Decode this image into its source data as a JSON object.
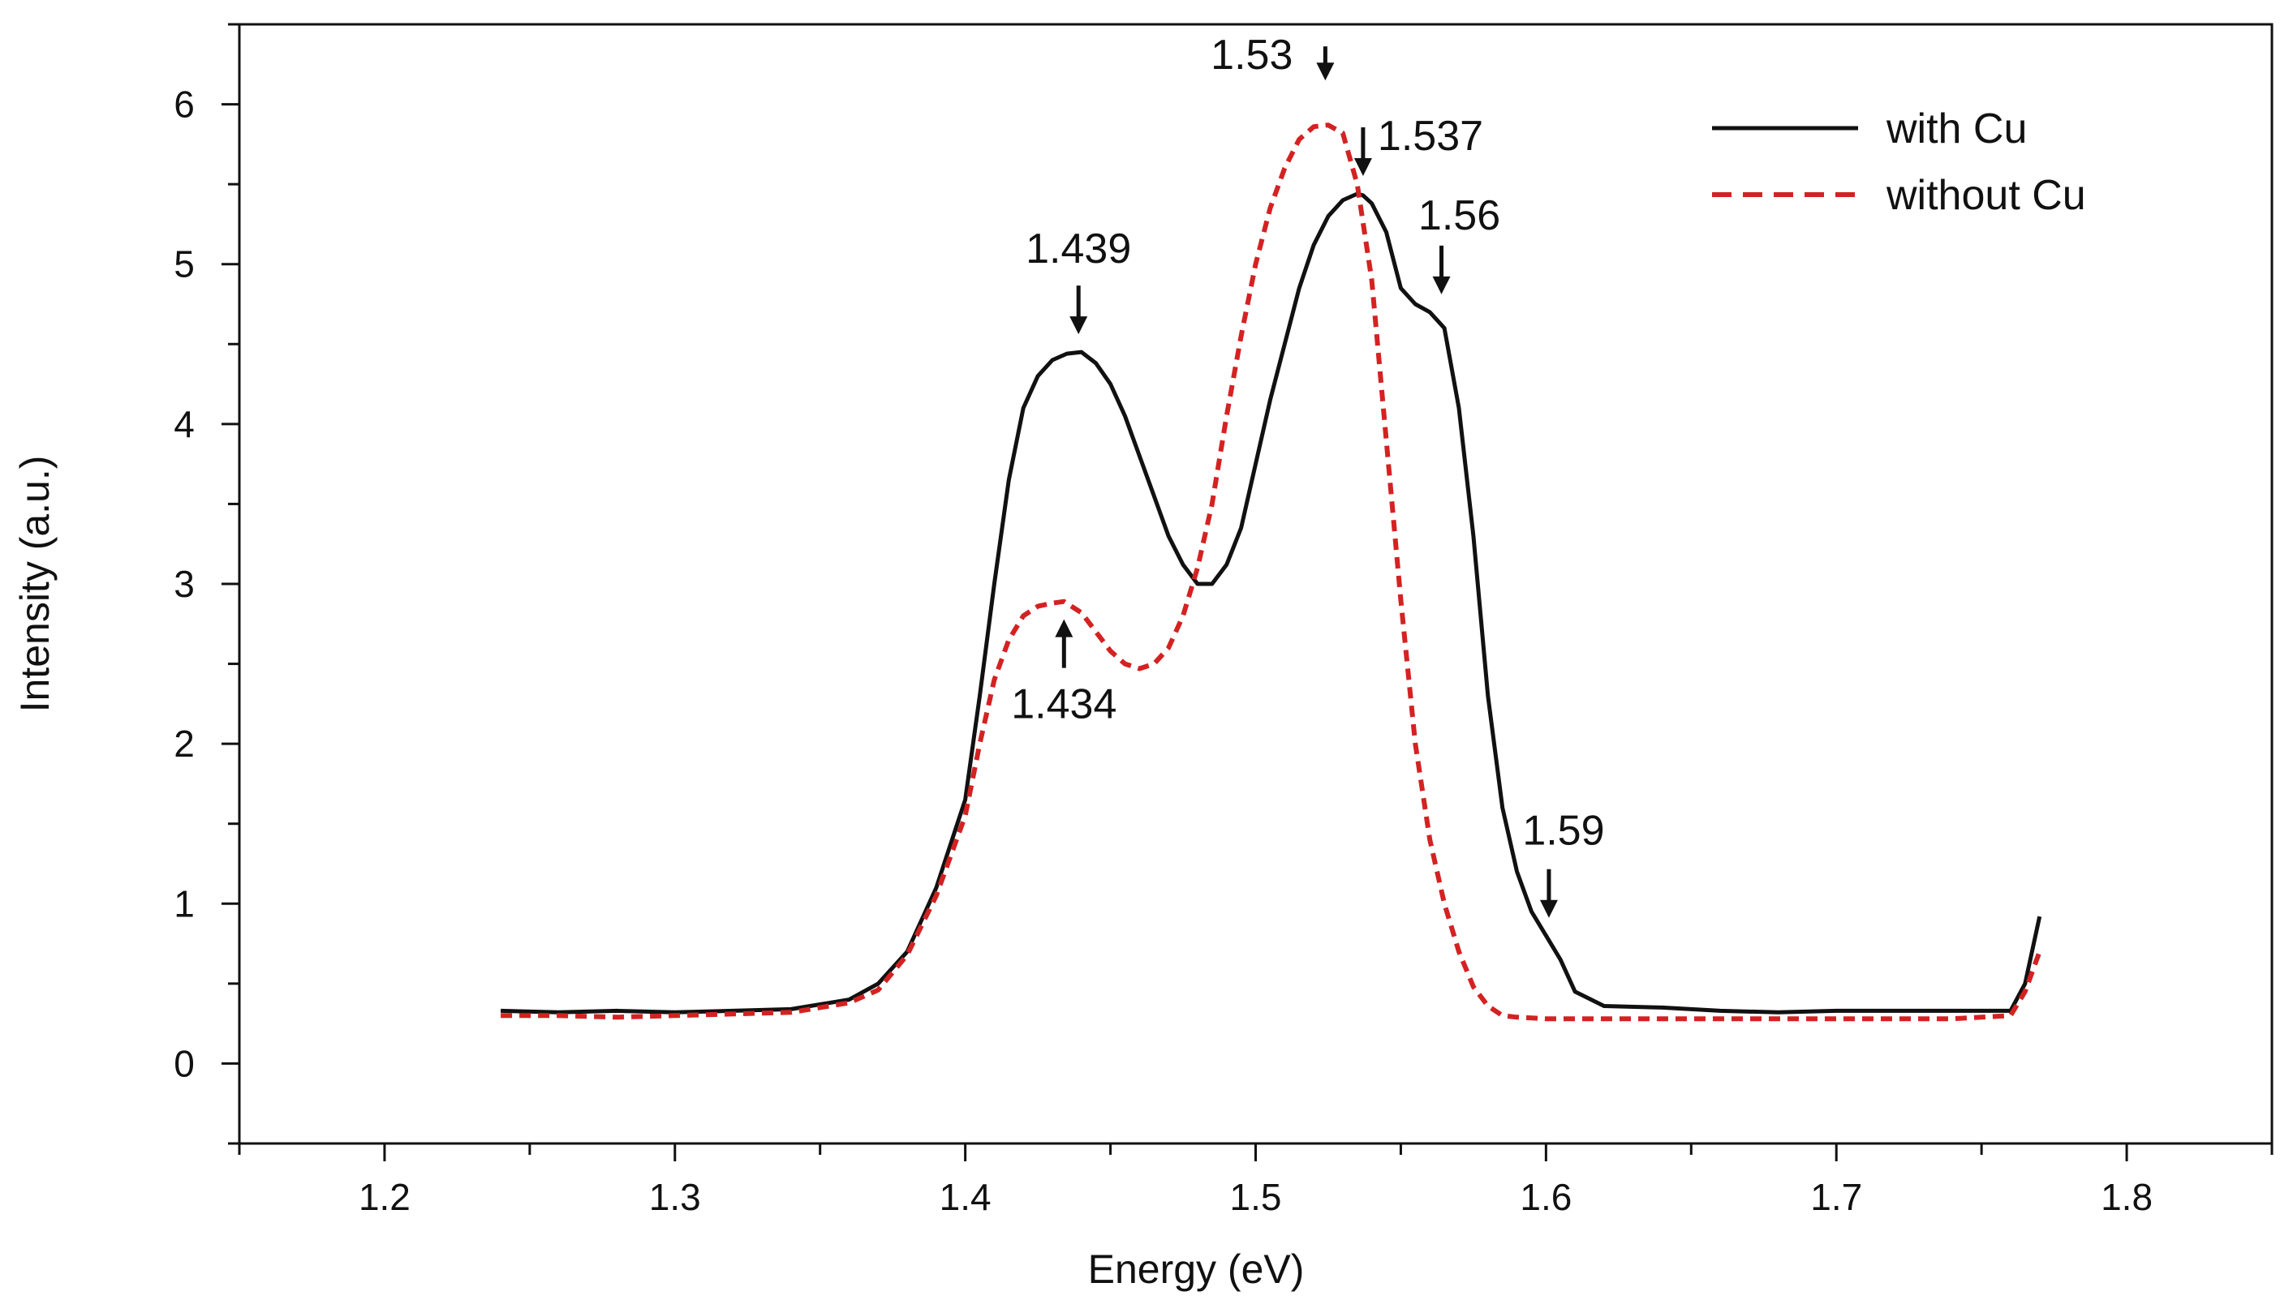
{
  "chart_data": {
    "type": "line",
    "title": "",
    "xlabel": "Energy  (eV)",
    "ylabel": "Intensity (a.u.)",
    "xlim": [
      1.15,
      1.85
    ],
    "ylim": [
      -0.5,
      6.5
    ],
    "xticks": [
      1.2,
      1.3,
      1.4,
      1.5,
      1.6,
      1.7,
      1.8
    ],
    "xtick_labels": [
      "1.2",
      "1.3",
      "1.4",
      "1.5",
      "1.6",
      "1.7",
      "1.8"
    ],
    "yticks": [
      0,
      1,
      2,
      3,
      4,
      5,
      6
    ],
    "ytick_labels": [
      "0",
      "1",
      "2",
      "3",
      "4",
      "5",
      "6"
    ],
    "grid": false,
    "legend_position": "top-right",
    "series": [
      {
        "name": "with Cu",
        "color": "#111111",
        "dash": "solid",
        "x": [
          1.24,
          1.26,
          1.28,
          1.3,
          1.32,
          1.34,
          1.36,
          1.37,
          1.38,
          1.39,
          1.4,
          1.405,
          1.41,
          1.415,
          1.42,
          1.425,
          1.43,
          1.435,
          1.44,
          1.445,
          1.45,
          1.455,
          1.46,
          1.465,
          1.47,
          1.475,
          1.48,
          1.485,
          1.49,
          1.495,
          1.5,
          1.505,
          1.51,
          1.515,
          1.52,
          1.525,
          1.53,
          1.535,
          1.537,
          1.54,
          1.545,
          1.55,
          1.555,
          1.56,
          1.565,
          1.57,
          1.575,
          1.58,
          1.585,
          1.59,
          1.595,
          1.6,
          1.605,
          1.61,
          1.62,
          1.64,
          1.66,
          1.68,
          1.7,
          1.72,
          1.74,
          1.76,
          1.765,
          1.77
        ],
        "y": [
          0.33,
          0.32,
          0.33,
          0.32,
          0.33,
          0.34,
          0.4,
          0.5,
          0.7,
          1.1,
          1.65,
          2.3,
          3.0,
          3.65,
          4.1,
          4.3,
          4.4,
          4.44,
          4.45,
          4.38,
          4.25,
          4.05,
          3.8,
          3.55,
          3.3,
          3.12,
          3.0,
          3.0,
          3.12,
          3.35,
          3.75,
          4.15,
          4.5,
          4.85,
          5.12,
          5.3,
          5.4,
          5.44,
          5.43,
          5.38,
          5.2,
          4.85,
          4.75,
          4.7,
          4.6,
          4.1,
          3.3,
          2.3,
          1.6,
          1.2,
          0.95,
          0.8,
          0.65,
          0.45,
          0.36,
          0.35,
          0.33,
          0.32,
          0.33,
          0.33,
          0.33,
          0.33,
          0.5,
          0.92
        ]
      },
      {
        "name": "without Cu",
        "color": "#d42222",
        "dash": "dashed",
        "x": [
          1.24,
          1.26,
          1.28,
          1.3,
          1.32,
          1.34,
          1.36,
          1.37,
          1.38,
          1.39,
          1.4,
          1.405,
          1.41,
          1.415,
          1.42,
          1.425,
          1.43,
          1.434,
          1.44,
          1.445,
          1.45,
          1.455,
          1.46,
          1.465,
          1.47,
          1.475,
          1.48,
          1.485,
          1.49,
          1.495,
          1.5,
          1.505,
          1.51,
          1.515,
          1.52,
          1.525,
          1.53,
          1.535,
          1.54,
          1.545,
          1.55,
          1.555,
          1.56,
          1.565,
          1.57,
          1.575,
          1.58,
          1.585,
          1.59,
          1.6,
          1.62,
          1.64,
          1.66,
          1.68,
          1.7,
          1.72,
          1.74,
          1.76,
          1.765,
          1.77
        ],
        "y": [
          0.3,
          0.3,
          0.29,
          0.3,
          0.31,
          0.32,
          0.38,
          0.46,
          0.68,
          1.05,
          1.55,
          2.0,
          2.4,
          2.65,
          2.8,
          2.86,
          2.88,
          2.89,
          2.82,
          2.7,
          2.58,
          2.5,
          2.47,
          2.5,
          2.6,
          2.8,
          3.1,
          3.5,
          4.05,
          4.55,
          5.0,
          5.35,
          5.6,
          5.78,
          5.86,
          5.87,
          5.82,
          5.5,
          4.9,
          3.9,
          2.9,
          2.0,
          1.4,
          1.0,
          0.7,
          0.48,
          0.36,
          0.3,
          0.29,
          0.28,
          0.28,
          0.28,
          0.28,
          0.28,
          0.28,
          0.28,
          0.28,
          0.3,
          0.45,
          0.7
        ]
      }
    ],
    "annotations": [
      {
        "text": "1.439",
        "x": 1.439,
        "y": 4.45,
        "arrow": "down"
      },
      {
        "text": "1.434",
        "x": 1.434,
        "y": 2.89,
        "arrow": "up"
      },
      {
        "text": "1.53",
        "x": 1.524,
        "y": 5.87,
        "arrow": "down"
      },
      {
        "text": "1.537",
        "x": 1.537,
        "y": 5.44,
        "arrow": "down"
      },
      {
        "text": "1.56",
        "x": 1.564,
        "y": 4.7,
        "arrow": "down"
      },
      {
        "text": "1.59",
        "x": 1.601,
        "y": 0.8,
        "arrow": "down"
      }
    ]
  }
}
